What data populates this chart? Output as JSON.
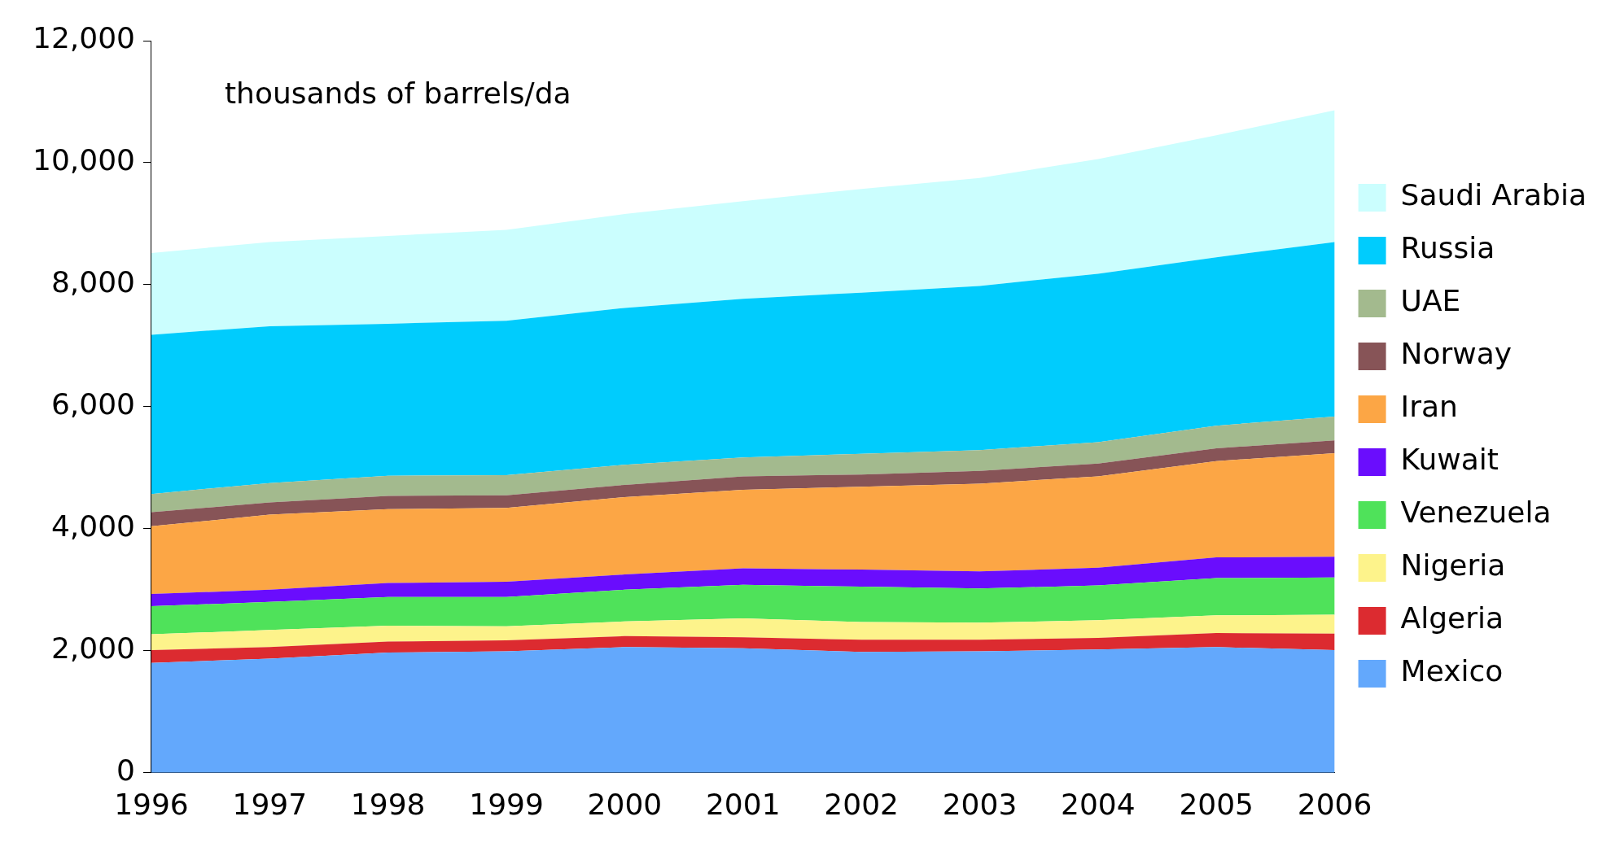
{
  "chart_data": {
    "type": "area",
    "stacked": true,
    "categories": [
      "1996",
      "1997",
      "1998",
      "1999",
      "2000",
      "2001",
      "2002",
      "2003",
      "2004",
      "2005",
      "2006"
    ],
    "series": [
      {
        "name": "Mexico",
        "color": "#63a8fc",
        "values": [
          1800,
          1870,
          1970,
          1990,
          2060,
          2040,
          1980,
          1990,
          2020,
          2060,
          2010
        ]
      },
      {
        "name": "Algeria",
        "color": "#dc2b30",
        "values": [
          210,
          190,
          180,
          180,
          180,
          180,
          200,
          190,
          190,
          230,
          270
        ]
      },
      {
        "name": "Nigeria",
        "color": "#fdf38b",
        "values": [
          260,
          280,
          260,
          230,
          240,
          310,
          290,
          280,
          290,
          290,
          310
        ]
      },
      {
        "name": "Venezuela",
        "color": "#4fe25a",
        "values": [
          460,
          460,
          470,
          480,
          520,
          550,
          580,
          560,
          570,
          610,
          610
        ]
      },
      {
        "name": "Kuwait",
        "color": "#6a0dfd",
        "values": [
          200,
          200,
          230,
          250,
          250,
          270,
          280,
          280,
          290,
          340,
          340
        ]
      },
      {
        "name": "Iran",
        "color": "#fca645",
        "values": [
          1110,
          1230,
          1210,
          1210,
          1270,
          1290,
          1360,
          1440,
          1500,
          1580,
          1700
        ]
      },
      {
        "name": "Norway",
        "color": "#875457",
        "values": [
          230,
          200,
          220,
          210,
          200,
          220,
          200,
          210,
          210,
          210,
          210
        ]
      },
      {
        "name": "UAE",
        "color": "#a3ba8e",
        "values": [
          300,
          320,
          330,
          330,
          330,
          310,
          340,
          340,
          350,
          370,
          390
        ]
      },
      {
        "name": "Russia",
        "color": "#00ccfd",
        "values": [
          2610,
          2570,
          2490,
          2530,
          2570,
          2600,
          2640,
          2690,
          2760,
          2760,
          2860
        ]
      },
      {
        "name": "Saudi Arabia",
        "color": "#cbfefe",
        "values": [
          1340,
          1380,
          1440,
          1490,
          1540,
          1600,
          1700,
          1770,
          1880,
          2000,
          2160
        ]
      }
    ],
    "ylim": [
      0,
      12000
    ],
    "yticks": [
      {
        "value": 0,
        "label": "0"
      },
      {
        "value": 2000,
        "label": "2,000"
      },
      {
        "value": 4000,
        "label": "4,000"
      },
      {
        "value": 6000,
        "label": "6,000"
      },
      {
        "value": 8000,
        "label": "8,000"
      },
      {
        "value": 10000,
        "label": "10,000"
      },
      {
        "value": 12000,
        "label": "12,000"
      }
    ],
    "annotations": [
      "thousands of barrels/da"
    ],
    "legend": "right",
    "grid": false
  }
}
